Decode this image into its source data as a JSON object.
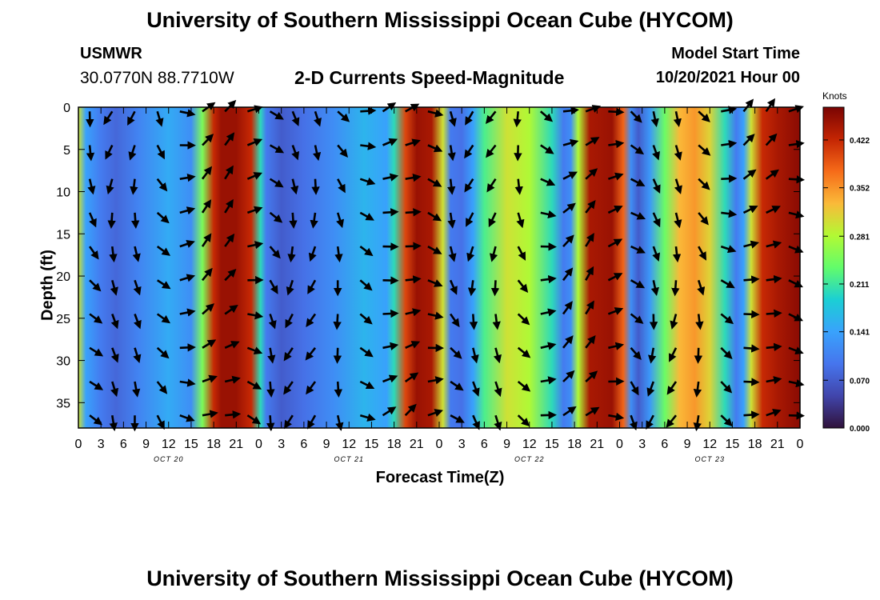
{
  "header": {
    "title": "University of Southern Mississippi Ocean Cube (HYCOM)",
    "station": "USMWR",
    "coords": "30.0770N  88.7710W",
    "subtitle": "2-D Currents Speed-Magnitude",
    "model_start_label": "Model Start Time",
    "model_start_value": "10/20/2021 Hour 00"
  },
  "footer": {
    "title": "University of Southern Mississippi Ocean Cube (HYCOM)"
  },
  "chart_data": {
    "type": "heatmap",
    "title": "2-D Currents Speed-Magnitude",
    "xlabel": "Forecast Time(Z)",
    "ylabel": "Depth (ft)",
    "x_range_hours": [
      0,
      96
    ],
    "ylim": [
      0,
      38
    ],
    "x_ticks": [
      "0",
      "3",
      "6",
      "9",
      "12",
      "15",
      "18",
      "21",
      "0",
      "3",
      "6",
      "9",
      "12",
      "15",
      "18",
      "21",
      "0",
      "3",
      "6",
      "9",
      "12",
      "15",
      "18",
      "21",
      "0",
      "3",
      "6",
      "9",
      "12",
      "15",
      "18",
      "21",
      "0"
    ],
    "y_ticks": [
      "0",
      "5",
      "10",
      "15",
      "20",
      "25",
      "30",
      "35"
    ],
    "day_labels": [
      "OCT 20",
      "OCT 21",
      "OCT 22",
      "OCT 23"
    ],
    "colorbar": {
      "unit": "Knots",
      "ticks": [
        "0.422",
        "0.352",
        "0.281",
        "0.211",
        "0.141",
        "0.070",
        "0.000"
      ],
      "max": 0.47
    },
    "speed_profile_hours": [
      0,
      1,
      3,
      5,
      8,
      12,
      15,
      16.5,
      18,
      19,
      21,
      23,
      24.2,
      25,
      27,
      30,
      34,
      38,
      41,
      42,
      43.5,
      45,
      47,
      48.5,
      49.5,
      51,
      52.5,
      54,
      57,
      60,
      63,
      64.5,
      65.5,
      66.5,
      68,
      71,
      72.5,
      73.5,
      74.5,
      76,
      78,
      80,
      82,
      84,
      86,
      87.5,
      88.5,
      89.5,
      91,
      93,
      96
    ],
    "speed_profile_knots": [
      0.3,
      0.14,
      0.1,
      0.08,
      0.11,
      0.15,
      0.12,
      0.25,
      0.42,
      0.45,
      0.45,
      0.42,
      0.2,
      0.1,
      0.07,
      0.09,
      0.12,
      0.16,
      0.14,
      0.2,
      0.4,
      0.45,
      0.44,
      0.3,
      0.1,
      0.09,
      0.14,
      0.22,
      0.3,
      0.28,
      0.2,
      0.1,
      0.12,
      0.28,
      0.44,
      0.45,
      0.38,
      0.12,
      0.07,
      0.13,
      0.24,
      0.33,
      0.35,
      0.31,
      0.2,
      0.1,
      0.14,
      0.3,
      0.42,
      0.44,
      0.46
    ]
  }
}
